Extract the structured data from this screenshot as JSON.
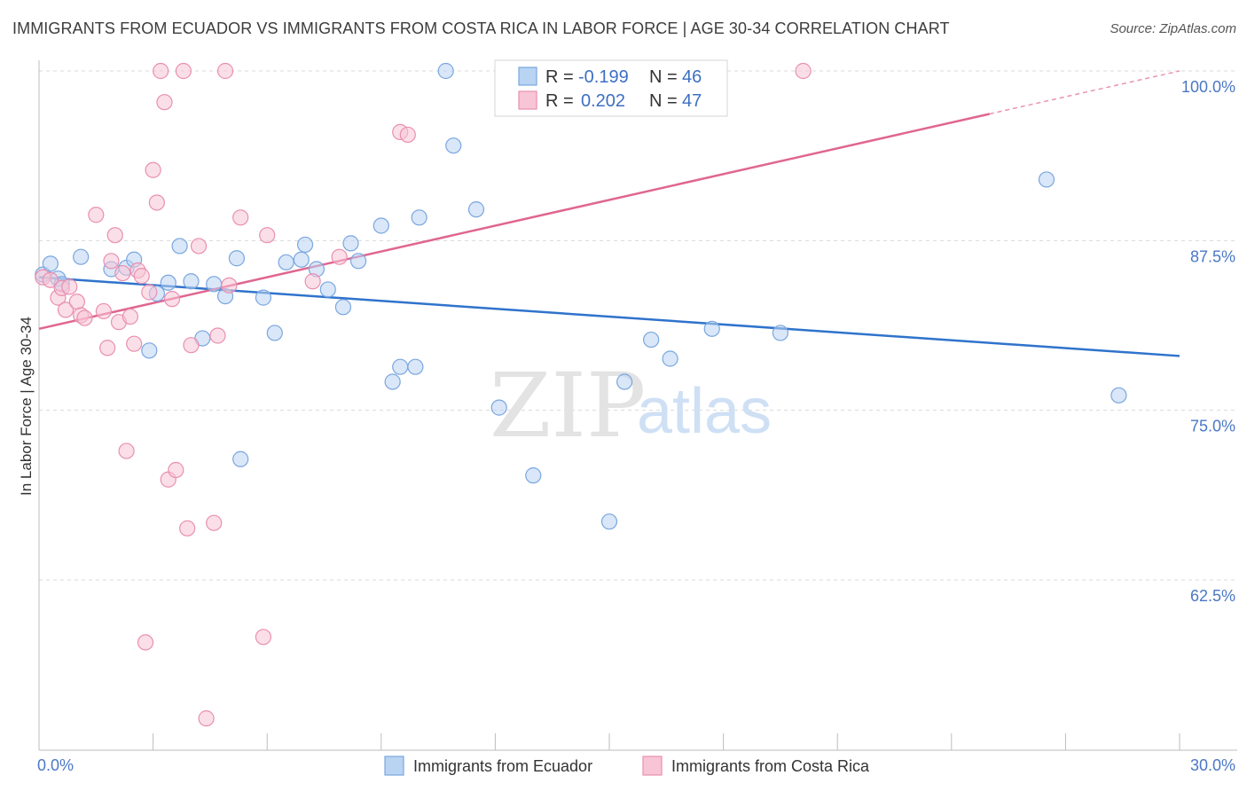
{
  "header": {
    "title": "IMMIGRANTS FROM ECUADOR VS IMMIGRANTS FROM COSTA RICA IN LABOR FORCE | AGE 30-34 CORRELATION CHART",
    "source": "Source: ZipAtlas.com"
  },
  "watermark": {
    "zip": "ZIP",
    "atlas": "atlas"
  },
  "colors": {
    "ecuador_fill": "#b9d3f3",
    "ecuador_stroke": "#7aa6df",
    "ecuador_line": "#2f73cc",
    "costarica_fill": "#f8c5d6",
    "costarica_stroke": "#e98fb0",
    "costarica_line": "#e0668f",
    "tick_label": "#4a77c6",
    "grid": "#d9d9d9"
  },
  "stats": {
    "ecuador": {
      "r_label": "R =",
      "r_value": "-0.199",
      "n_label": "N =",
      "n_value": "46"
    },
    "costarica": {
      "r_label": "R =",
      "r_value": "0.202",
      "n_label": "N =",
      "n_value": "47"
    }
  },
  "chart_data": {
    "type": "scatter",
    "title": "IMMIGRANTS FROM ECUADOR VS IMMIGRANTS FROM COSTA RICA IN LABOR FORCE | AGE 30-34 CORRELATION CHART",
    "xlabel": "",
    "ylabel": "In Labor Force | Age 30-34",
    "xlim": [
      0,
      30
    ],
    "ylim": [
      50,
      100
    ],
    "x_tick_labels": [
      "0.0%",
      "30.0%"
    ],
    "y_ticks": [
      62.5,
      75.0,
      87.5,
      100.0
    ],
    "y_tick_labels": [
      "62.5%",
      "75.0%",
      "87.5%",
      "100.0%"
    ],
    "grid": true,
    "legend_position": "bottom-center",
    "series": [
      {
        "name": "Immigrants from Ecuador",
        "color": "#7aa6df",
        "points": [
          [
            0.1,
            85.0
          ],
          [
            0.3,
            85.8
          ],
          [
            0.5,
            84.7
          ],
          [
            0.6,
            84.3
          ],
          [
            1.1,
            86.3
          ],
          [
            1.9,
            85.4
          ],
          [
            2.3,
            85.5
          ],
          [
            2.5,
            86.1
          ],
          [
            2.9,
            79.4
          ],
          [
            3.1,
            83.6
          ],
          [
            3.4,
            84.4
          ],
          [
            3.7,
            87.1
          ],
          [
            4.0,
            84.5
          ],
          [
            4.3,
            80.3
          ],
          [
            4.6,
            84.3
          ],
          [
            4.9,
            83.4
          ],
          [
            5.2,
            86.2
          ],
          [
            5.3,
            71.4
          ],
          [
            5.9,
            83.3
          ],
          [
            6.2,
            80.7
          ],
          [
            6.5,
            85.9
          ],
          [
            6.9,
            86.1
          ],
          [
            7.0,
            87.2
          ],
          [
            7.3,
            85.4
          ],
          [
            7.6,
            83.9
          ],
          [
            8.0,
            82.6
          ],
          [
            8.2,
            87.3
          ],
          [
            8.4,
            86.0
          ],
          [
            9.0,
            88.6
          ],
          [
            9.3,
            77.1
          ],
          [
            9.5,
            78.2
          ],
          [
            9.9,
            78.2
          ],
          [
            10.0,
            89.2
          ],
          [
            10.7,
            100.0
          ],
          [
            10.9,
            94.5
          ],
          [
            11.5,
            89.8
          ],
          [
            12.1,
            75.2
          ],
          [
            13.0,
            70.2
          ],
          [
            15.0,
            66.8
          ],
          [
            15.4,
            77.1
          ],
          [
            16.1,
            80.2
          ],
          [
            16.6,
            78.8
          ],
          [
            17.7,
            81.0
          ],
          [
            19.5,
            80.7
          ],
          [
            26.5,
            92.0
          ],
          [
            28.4,
            76.1
          ]
        ],
        "trend": {
          "x": [
            0,
            30
          ],
          "y": [
            84.8,
            79.0
          ],
          "dashed_from_x": null
        }
      },
      {
        "name": "Immigrants from Costa Rica",
        "color": "#e98fb0",
        "points": [
          [
            0.1,
            84.8
          ],
          [
            0.3,
            84.6
          ],
          [
            0.5,
            83.3
          ],
          [
            0.6,
            84.0
          ],
          [
            0.7,
            82.4
          ],
          [
            1.0,
            83.0
          ],
          [
            1.1,
            82.0
          ],
          [
            1.2,
            81.8
          ],
          [
            1.5,
            89.4
          ],
          [
            1.7,
            82.3
          ],
          [
            1.8,
            79.6
          ],
          [
            1.9,
            86.0
          ],
          [
            2.0,
            87.9
          ],
          [
            2.1,
            81.5
          ],
          [
            2.2,
            85.1
          ],
          [
            2.3,
            72.0
          ],
          [
            2.4,
            81.9
          ],
          [
            2.5,
            79.9
          ],
          [
            2.6,
            85.3
          ],
          [
            2.7,
            84.9
          ],
          [
            2.8,
            57.9
          ],
          [
            2.9,
            83.7
          ],
          [
            3.0,
            92.7
          ],
          [
            3.1,
            90.3
          ],
          [
            3.2,
            100.0
          ],
          [
            3.3,
            97.7
          ],
          [
            3.4,
            69.9
          ],
          [
            3.5,
            83.2
          ],
          [
            3.6,
            70.6
          ],
          [
            3.8,
            100.0
          ],
          [
            3.9,
            66.3
          ],
          [
            4.0,
            79.8
          ],
          [
            4.2,
            87.1
          ],
          [
            4.4,
            52.3
          ],
          [
            4.6,
            66.7
          ],
          [
            4.7,
            80.5
          ],
          [
            4.9,
            100.0
          ],
          [
            5.0,
            84.2
          ],
          [
            5.3,
            89.2
          ],
          [
            5.9,
            58.3
          ],
          [
            6.0,
            87.9
          ],
          [
            7.2,
            84.5
          ],
          [
            7.9,
            86.3
          ],
          [
            9.5,
            95.5
          ],
          [
            9.7,
            95.3
          ],
          [
            20.1,
            100.0
          ],
          [
            0.8,
            84.1
          ]
        ],
        "trend": {
          "x": [
            0,
            30
          ],
          "y": [
            81.0,
            100.0
          ],
          "dashed_from_x": 25.0
        }
      }
    ]
  },
  "legend": {
    "ecuador_label": "Immigrants from Ecuador",
    "costarica_label": "Immigrants from Costa Rica"
  }
}
